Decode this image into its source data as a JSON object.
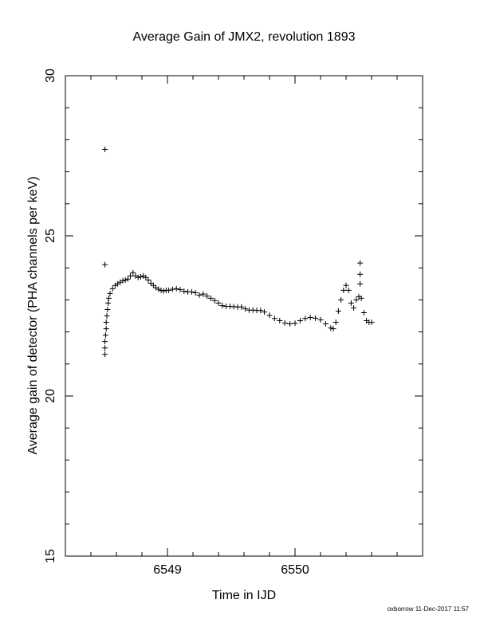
{
  "chart_data": {
    "type": "scatter",
    "title": "Average Gain of JMX2, revolution 1893",
    "xlabel": "Time in IJD",
    "ylabel": "Average gain of detector (PHA channels per keV)",
    "footnote": "oxborrow 11-Dec-2017 11:57",
    "xlim": [
      6548.2,
      6551.0
    ],
    "xticks": [
      6549,
      6550
    ],
    "ylim": [
      15,
      30
    ],
    "yticks": [
      15,
      20,
      25,
      30
    ],
    "color": "#000000",
    "x": [
      6548.51,
      6548.51,
      6548.51,
      6548.51,
      6548.51,
      6548.515,
      6548.52,
      6548.52,
      6548.525,
      6548.53,
      6548.535,
      6548.54,
      6548.55,
      6548.57,
      6548.59,
      6548.61,
      6548.63,
      6548.65,
      6548.67,
      6548.69,
      6548.71,
      6548.73,
      6548.75,
      6548.77,
      6548.79,
      6548.81,
      6548.83,
      6548.85,
      6548.87,
      6548.89,
      6548.91,
      6548.93,
      6548.95,
      6548.97,
      6548.99,
      6549.01,
      6549.04,
      6549.07,
      6549.1,
      6549.13,
      6549.16,
      6549.19,
      6549.22,
      6549.25,
      6549.28,
      6549.31,
      6549.34,
      6549.37,
      6549.4,
      6549.43,
      6549.46,
      6549.49,
      6549.52,
      6549.55,
      6549.58,
      6549.61,
      6549.64,
      6549.67,
      6549.7,
      6549.73,
      6549.76,
      6549.8,
      6549.84,
      6549.88,
      6549.92,
      6549.96,
      6550,
      6550.04,
      6550.08,
      6550.12,
      6550.16,
      6550.2,
      6550.24,
      6550.28,
      6550.3,
      6550.32,
      6550.34,
      6550.36,
      6550.38,
      6550.4,
      6550.42,
      6550.44,
      6550.46,
      6550.48,
      6550.5,
      6550.51,
      6550.51,
      6550.51,
      6550.52,
      6550.54,
      6550.56,
      6550.58,
      6550.6
    ],
    "values": [
      27.7,
      24.1,
      21.3,
      21.5,
      21.7,
      21.9,
      22.1,
      22.3,
      22.5,
      22.7,
      22.9,
      23.05,
      23.2,
      23.35,
      23.45,
      23.5,
      23.55,
      23.6,
      23.62,
      23.65,
      23.75,
      23.85,
      23.75,
      23.7,
      23.72,
      23.75,
      23.7,
      23.62,
      23.52,
      23.45,
      23.38,
      23.33,
      23.3,
      23.28,
      23.3,
      23.3,
      23.33,
      23.35,
      23.32,
      23.27,
      23.25,
      23.25,
      23.22,
      23.15,
      23.18,
      23.12,
      23.05,
      22.98,
      22.9,
      22.82,
      22.8,
      22.8,
      22.79,
      22.78,
      22.78,
      22.72,
      22.68,
      22.68,
      22.67,
      22.67,
      22.62,
      22.52,
      22.42,
      22.35,
      22.28,
      22.25,
      22.27,
      22.35,
      22.42,
      22.45,
      22.43,
      22.38,
      22.25,
      22.12,
      22.1,
      22.3,
      22.65,
      23.0,
      23.3,
      23.45,
      23.3,
      22.9,
      22.75,
      23.0,
      23.1,
      23.5,
      23.8,
      24.15,
      23.05,
      22.6,
      22.35,
      22.3,
      22.3
    ]
  }
}
